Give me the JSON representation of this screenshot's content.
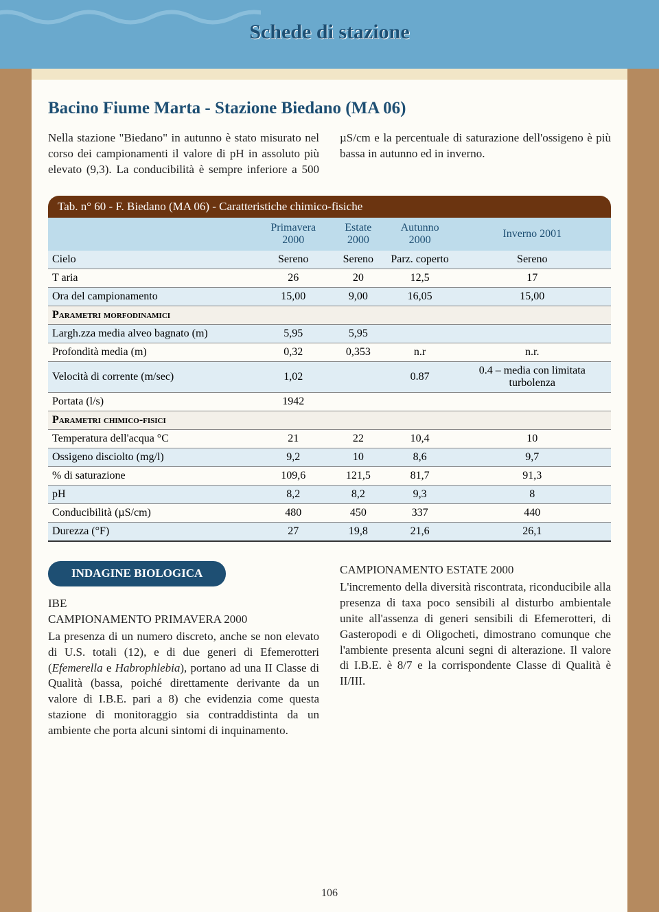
{
  "header": {
    "title": "Schede di stazione"
  },
  "main_title": "Bacino Fiume Marta - Stazione Biedano (MA 06)",
  "intro": "Nella stazione \"Biedano\" in autunno è stato misurato nel corso dei campionamenti il valore di pH in assoluto più elevato (9,3). La conducibilità è sempre inferiore a 500 µS/cm e la percentuale di saturazione dell'ossigeno è più bassa in autunno ed in inverno.",
  "table": {
    "caption": "Tab. n° 60 - F. Biedano (MA 06) - Caratteristiche chimico-fisiche",
    "columns": [
      "Primavera 2000",
      "Estate 2000",
      "Autunno 2000",
      "Inverno 2001"
    ],
    "rows": [
      {
        "label": "Cielo",
        "v": [
          "Sereno",
          "Sereno",
          "Parz. coperto",
          "Sereno"
        ],
        "alt": true
      },
      {
        "label": "T aria",
        "v": [
          "26",
          "20",
          "12,5",
          "17"
        ]
      },
      {
        "label": "Ora del campionamento",
        "v": [
          "15,00",
          "9,00",
          "16,05",
          "15,00"
        ],
        "alt": true
      },
      {
        "section": "Parametri morfodinamici"
      },
      {
        "label": "Largh.zza media alveo bagnato (m)",
        "v": [
          "5,95",
          "5,95",
          "",
          ""
        ],
        "alt": true
      },
      {
        "label": "Profondità media (m)",
        "v": [
          "0,32",
          "0,353",
          "n.r",
          "n.r."
        ]
      },
      {
        "label": "Velocità di corrente (m/sec)",
        "v": [
          "1,02",
          "",
          "0.87",
          "0.4 – media con limitata turbolenza"
        ],
        "alt": true
      },
      {
        "label": "Portata (l/s)",
        "v": [
          "1942",
          "",
          "",
          ""
        ]
      },
      {
        "section": "Parametri chimico-fisici"
      },
      {
        "label": "Temperatura dell'acqua °C",
        "v": [
          "21",
          "22",
          "10,4",
          "10"
        ]
      },
      {
        "label": "Ossigeno disciolto (mg/l)",
        "v": [
          "9,2",
          "10",
          "8,6",
          "9,7"
        ],
        "alt": true
      },
      {
        "label": "% di saturazione",
        "v": [
          "109,6",
          "121,5",
          "81,7",
          "91,3"
        ]
      },
      {
        "label": "pH",
        "v": [
          "8,2",
          "8,2",
          "9,3",
          "8"
        ],
        "alt": true
      },
      {
        "label": "Conducibilità (µS/cm)",
        "v": [
          "480",
          "450",
          "337",
          "440"
        ]
      },
      {
        "label": "Durezza (°F)",
        "v": [
          "27",
          "19,8",
          "21,6",
          "26,1"
        ],
        "alt": true,
        "last": true
      }
    ]
  },
  "bio": {
    "pill": "INDAGINE BIOLOGICA",
    "left_lead": "IBE",
    "left_sub": "CAMPIONAMENTO PRIMAVERA 2000",
    "right_sub": "CAMPIONAMENTO ESTATE 2000"
  },
  "page_number": "106"
}
